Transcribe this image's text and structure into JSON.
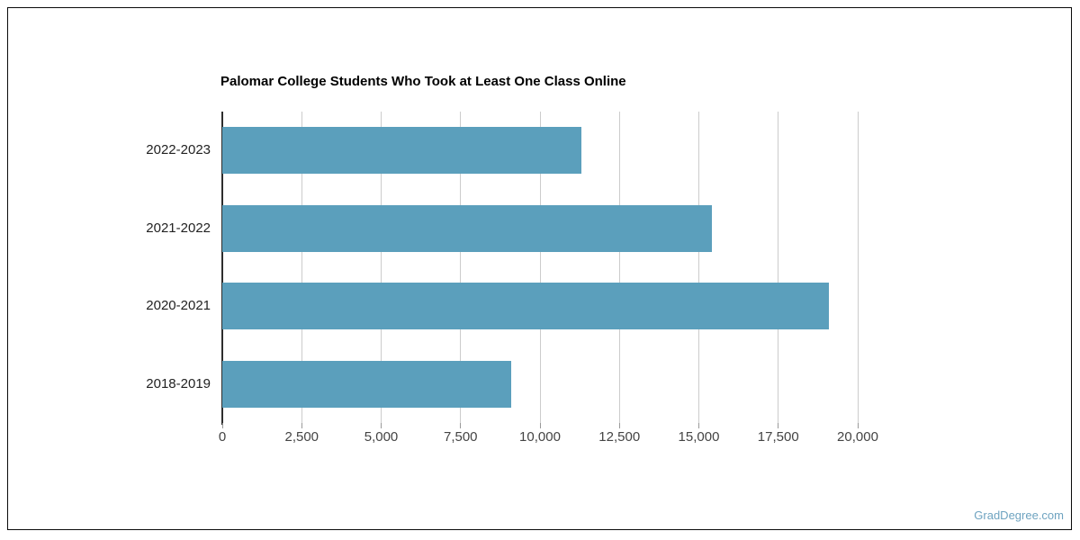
{
  "title": "Palomar College Students Who Took at Least One Class Online",
  "watermark": "GradDegree.com",
  "colors": {
    "bar": "#5b9fbc",
    "grid": "#cccccc",
    "axis": "#2e2e2e",
    "tick": "#999999",
    "tick_label": "#444444",
    "category_label": "#222222",
    "title": "#000000",
    "watermark": "#6ea3c0",
    "frame_border": "#0a0a0a",
    "background": "#ffffff"
  },
  "chart_data": {
    "type": "bar",
    "orientation": "horizontal",
    "title": "Palomar College Students Who Took at Least One Class Online",
    "categories": [
      "2022-2023",
      "2021-2022",
      "2020-2021",
      "2018-2019"
    ],
    "values": [
      11300,
      15400,
      19100,
      9100
    ],
    "xlabel": "",
    "ylabel": "",
    "xlim": [
      0,
      20000
    ],
    "xticks": [
      0,
      2500,
      5000,
      7500,
      10000,
      12500,
      15000,
      17500,
      20000
    ],
    "xtick_labels": [
      "0",
      "2,500",
      "5,000",
      "7,500",
      "10,000",
      "12,500",
      "15,000",
      "17,500",
      "20,000"
    ],
    "grid": "vertical",
    "legend": false
  }
}
